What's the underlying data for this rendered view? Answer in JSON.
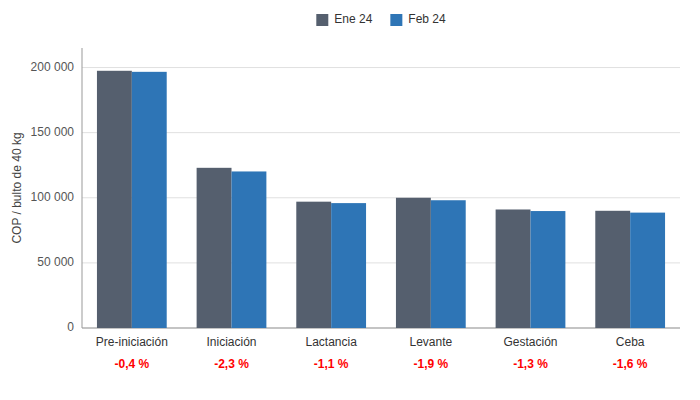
{
  "chart_data": {
    "type": "bar",
    "categories": [
      "Pre-iniciación",
      "Iniciación",
      "Lactancia",
      "Levante",
      "Gestación",
      "Ceba"
    ],
    "series": [
      {
        "name": "Ene 24",
        "color": "#555f6e",
        "values": [
          197500,
          123000,
          97000,
          100000,
          91000,
          90000
        ]
      },
      {
        "name": "Feb 24",
        "color": "#2E75B6",
        "values": [
          196700,
          120200,
          95900,
          98100,
          89800,
          88600
        ]
      }
    ],
    "ylabel": "COP / bulto de 40 kg",
    "ylim": [
      0,
      215000
    ],
    "yticks": [
      0,
      {
        "value": 50000,
        "label": "50 000"
      },
      {
        "value": 100000,
        "label": "100 000"
      },
      {
        "value": 150000,
        "label": "150 000"
      },
      {
        "value": 200000,
        "label": "200 000"
      }
    ],
    "grid": true,
    "legend": "top",
    "annotations": [
      {
        "text": "-0,4 %",
        "x": "Pre-iniciación",
        "color": "#ff0000"
      },
      {
        "text": "-2,3 %",
        "x": "Iniciación",
        "color": "#ff0000"
      },
      {
        "text": "-1,1 %",
        "x": "Lactancia",
        "color": "#ff0000"
      },
      {
        "text": "-1,9 %",
        "x": "Levante",
        "color": "#ff0000"
      },
      {
        "text": "-1,3 %",
        "x": "Gestación",
        "color": "#ff0000"
      },
      {
        "text": "-1,6 %",
        "x": "Ceba",
        "color": "#ff0000"
      }
    ]
  }
}
